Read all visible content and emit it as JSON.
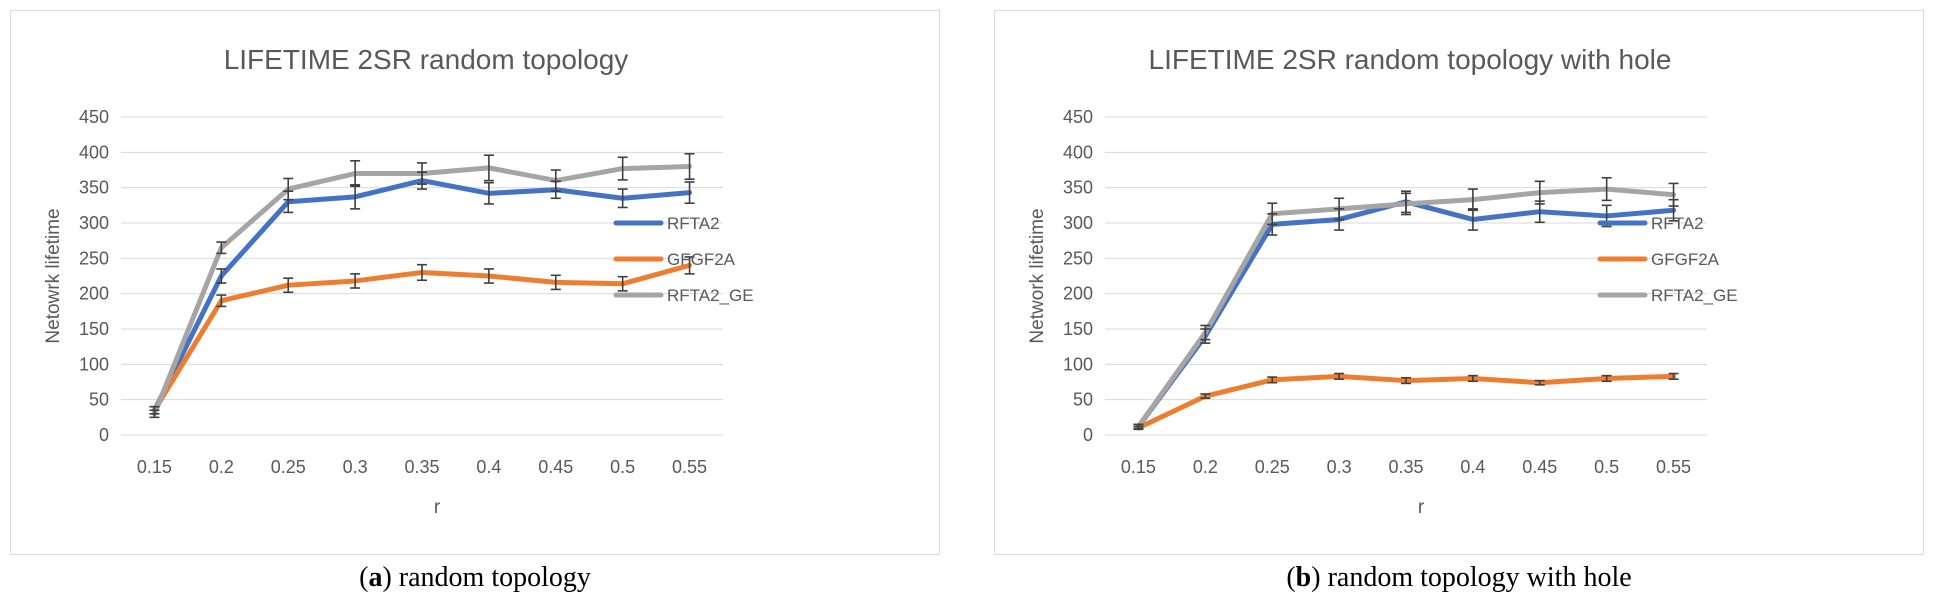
{
  "colors": {
    "RFTA2": "#4472C4",
    "GFGF2A": "#ED7D31",
    "RFTA2_GE": "#A5A5A5",
    "grid": "#d9d9d9",
    "axis_text": "#595959",
    "errorbar": "#404040"
  },
  "captions": [
    {
      "letter": "a",
      "open": "(",
      "close": ")",
      "text": " random topology"
    },
    {
      "letter": "b",
      "open": "(",
      "close": ")",
      "text": " random topology with hole"
    }
  ],
  "chart_data": [
    {
      "type": "line",
      "title": "LIFETIME 2SR random topology",
      "xlabel": "r",
      "ylabel": "Netowrk lifetime",
      "categories": [
        "0.15",
        "0.2",
        "0.25",
        "0.3",
        "0.35",
        "0.4",
        "0.45",
        "0.5",
        "0.55"
      ],
      "ylim": [
        0,
        450
      ],
      "yticks": [
        0,
        50,
        100,
        150,
        200,
        250,
        300,
        350,
        400,
        450
      ],
      "grid": true,
      "legend": "right",
      "series": [
        {
          "name": "RFTA2",
          "values": [
            35,
            225,
            330,
            337,
            360,
            342,
            347,
            335,
            343
          ],
          "errors": [
            5,
            10,
            15,
            17,
            12,
            15,
            12,
            13,
            15
          ]
        },
        {
          "name": "GFGF2A",
          "values": [
            35,
            190,
            212,
            218,
            230,
            225,
            216,
            214,
            240
          ],
          "errors": [
            5,
            8,
            10,
            10,
            11,
            10,
            10,
            10,
            12
          ]
        },
        {
          "name": "RFTA2_GE",
          "values": [
            30,
            265,
            348,
            370,
            370,
            378,
            360,
            377,
            380
          ],
          "errors": [
            5,
            8,
            15,
            18,
            15,
            18,
            15,
            16,
            18
          ]
        }
      ]
    },
    {
      "type": "line",
      "title": "LIFETIME 2SR random topology with hole",
      "xlabel": "r",
      "ylabel": "Network lifetime",
      "categories": [
        "0.15",
        "0.2",
        "0.25",
        "0.3",
        "0.35",
        "0.4",
        "0.45",
        "0.5",
        "0.55"
      ],
      "ylim": [
        0,
        450
      ],
      "yticks": [
        0,
        50,
        100,
        150,
        200,
        250,
        300,
        350,
        400,
        450
      ],
      "grid": true,
      "legend": "right",
      "series": [
        {
          "name": "RFTA2",
          "values": [
            12,
            140,
            298,
            305,
            330,
            305,
            316,
            310,
            318
          ],
          "errors": [
            3,
            10,
            15,
            15,
            15,
            15,
            15,
            15,
            15
          ]
        },
        {
          "name": "GFGF2A",
          "values": [
            10,
            55,
            78,
            83,
            77,
            80,
            74,
            80,
            83
          ],
          "errors": [
            2,
            3,
            4,
            4,
            4,
            4,
            3,
            4,
            4
          ]
        },
        {
          "name": "RFTA2_GE",
          "values": [
            12,
            145,
            313,
            320,
            327,
            333,
            343,
            348,
            340
          ],
          "errors": [
            3,
            10,
            15,
            15,
            15,
            15,
            16,
            16,
            16
          ]
        }
      ]
    }
  ]
}
